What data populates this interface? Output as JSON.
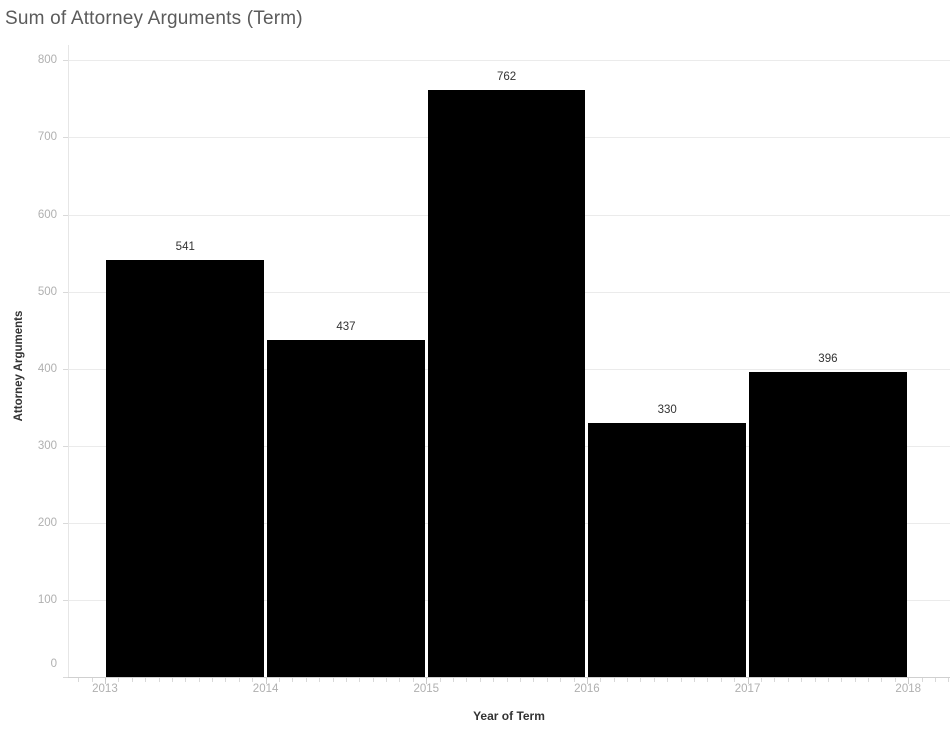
{
  "chart_data": {
    "type": "bar",
    "title": "Sum of Attorney Arguments (Term)",
    "xlabel": "Year of Term",
    "ylabel": "Attorney Arguments",
    "categories": [
      2013,
      2014,
      2015,
      2016,
      2017
    ],
    "values": [
      541,
      437,
      762,
      330,
      396
    ],
    "bar_value_labels": [
      "541",
      "437",
      "762",
      "330",
      "396"
    ],
    "x_ticks": [
      2013,
      2014,
      2015,
      2016,
      2017,
      2018
    ],
    "y_ticks": [
      0,
      100,
      200,
      300,
      400,
      500,
      600,
      700,
      800
    ],
    "xlim": [
      2012.77,
      2018.26
    ],
    "ylim": [
      0,
      820
    ],
    "grid": "horizontal",
    "legend": "none",
    "minor_x_ticks_per_year": 12,
    "colors": {
      "bar": "#000000",
      "title": "#5b5b5b",
      "tick_label": "#b0b0b0",
      "axis_title": "#333333",
      "value_label": "#333333",
      "gridline": "#ebebeb",
      "axis_line": "#d0d0d0",
      "background": "#ffffff"
    }
  }
}
